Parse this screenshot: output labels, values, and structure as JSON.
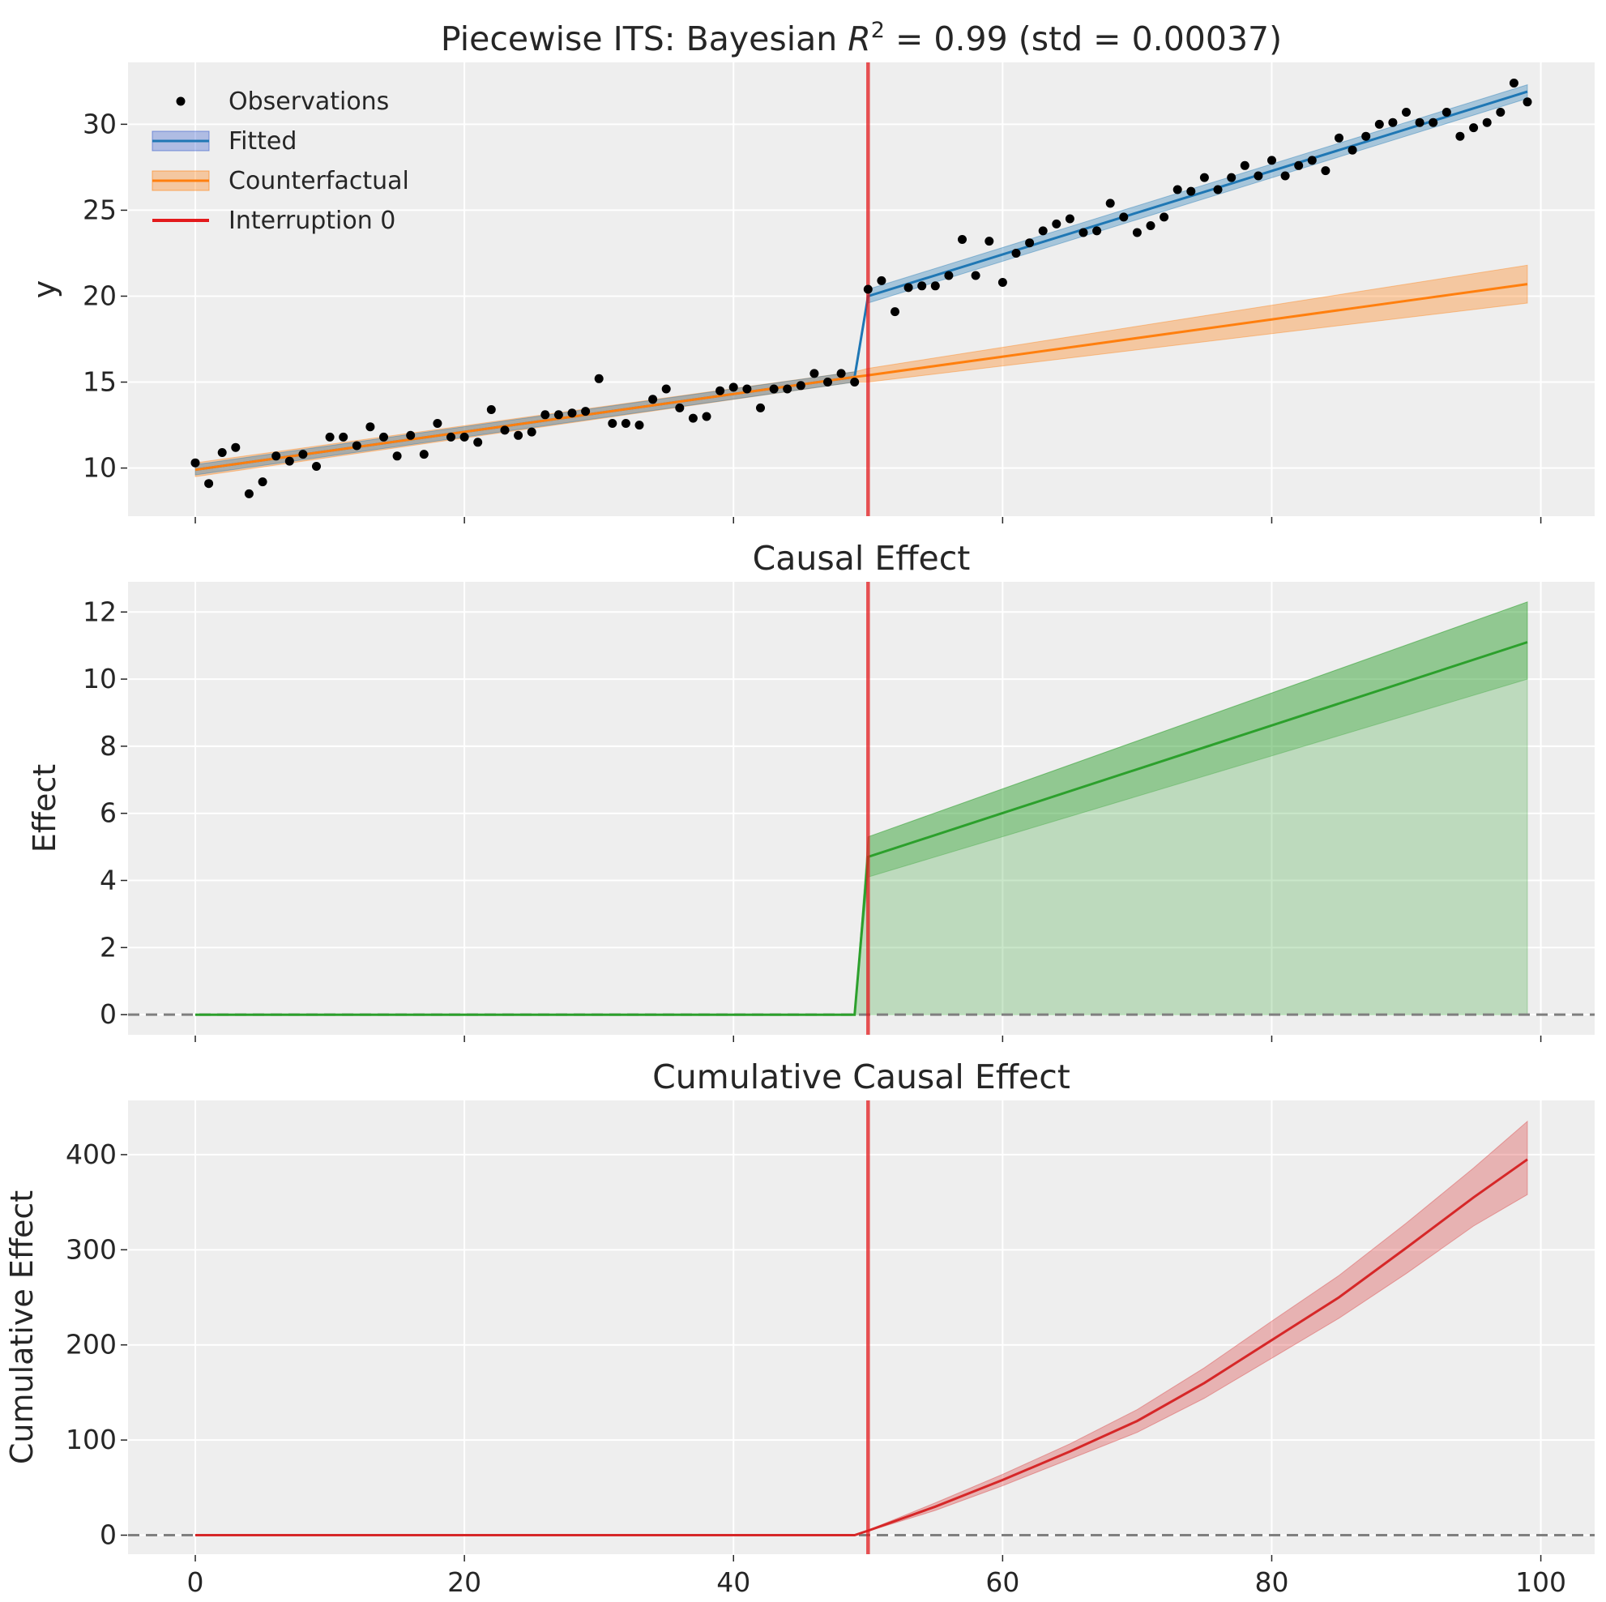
{
  "chart_data": [
    {
      "type": "line",
      "title_prefix": "Piecewise ITS: Bayesian ",
      "title_var": "R",
      "title_sup": "2",
      "title_suffix": " = 0.99 (std = 0.00037)",
      "xlabel": "",
      "ylabel": "y",
      "xlim": [
        -5,
        104
      ],
      "ylim": [
        7.2,
        33.6
      ],
      "yticks": [
        10,
        15,
        20,
        25,
        30
      ],
      "xticks": [
        0,
        20,
        40,
        60,
        80,
        100
      ],
      "show_xtick_labels": false,
      "grid": true,
      "legend_position": "top-left",
      "interruption_x": 50,
      "observations": {
        "name": "Observations",
        "color": "#000000",
        "x": [
          0,
          1,
          2,
          3,
          4,
          5,
          6,
          7,
          8,
          9,
          10,
          11,
          12,
          13,
          14,
          15,
          16,
          17,
          18,
          19,
          20,
          21,
          22,
          23,
          24,
          25,
          26,
          27,
          28,
          29,
          30,
          31,
          32,
          33,
          34,
          35,
          36,
          37,
          38,
          39,
          40,
          41,
          42,
          43,
          44,
          45,
          46,
          47,
          48,
          49,
          50,
          51,
          52,
          53,
          54,
          55,
          56,
          57,
          58,
          59,
          60,
          61,
          62,
          63,
          64,
          65,
          66,
          67,
          68,
          69,
          70,
          71,
          72,
          73,
          74,
          75,
          76,
          77,
          78,
          79,
          80,
          81,
          82,
          83,
          84,
          85,
          86,
          87,
          88,
          89,
          90,
          91,
          92,
          93,
          94,
          95,
          96,
          97,
          98,
          99
        ],
        "y": [
          10.3,
          9.1,
          10.9,
          11.2,
          8.5,
          9.2,
          10.7,
          10.4,
          10.8,
          10.1,
          11.8,
          11.8,
          11.3,
          12.4,
          11.8,
          10.7,
          11.9,
          10.8,
          12.6,
          11.8,
          11.8,
          11.5,
          13.4,
          12.2,
          11.9,
          12.1,
          13.1,
          13.1,
          13.2,
          13.3,
          15.2,
          12.6,
          12.6,
          12.5,
          14.0,
          14.6,
          13.5,
          12.9,
          13.0,
          14.5,
          14.7,
          14.6,
          13.5,
          14.6,
          14.6,
          14.8,
          15.5,
          15.0,
          15.5,
          15.0,
          20.4,
          20.9,
          19.1,
          20.5,
          20.6,
          20.6,
          21.2,
          23.3,
          21.2,
          23.2,
          20.8,
          22.5,
          23.1,
          23.8,
          24.2,
          24.5,
          23.7,
          23.8,
          25.4,
          24.6,
          23.7,
          24.1,
          24.6,
          26.2,
          26.1,
          26.9,
          26.2,
          26.9,
          27.6,
          27.0,
          27.9,
          27.0,
          27.6,
          27.9,
          27.3,
          29.2,
          28.5,
          29.3,
          30.0,
          30.1,
          30.7,
          30.1,
          30.1,
          30.7,
          29.3,
          29.8,
          30.1,
          30.7,
          32.4,
          31.3
        ]
      },
      "fitted": {
        "name": "Fitted",
        "color": "#1f77b4",
        "legend_color": "#3a5fcd",
        "segments": [
          {
            "x": [
              0,
              49
            ],
            "y": [
              9.9,
              15.3
            ],
            "lower": [
              9.6,
              15.0
            ],
            "upper": [
              10.2,
              15.6
            ]
          },
          {
            "x": [
              50,
              99
            ],
            "y": [
              20.0,
              31.9
            ],
            "lower": [
              19.6,
              31.5
            ],
            "upper": [
              20.4,
              32.3
            ]
          }
        ],
        "jump": {
          "x": [
            49,
            50
          ],
          "y": [
            15.3,
            20.0
          ]
        }
      },
      "counterfactual": {
        "name": "Counterfactual",
        "color": "#ff7f0e",
        "x": [
          0,
          49,
          50,
          99
        ],
        "y": [
          9.9,
          15.3,
          15.4,
          20.7
        ],
        "lower": [
          9.5,
          15.0,
          15.0,
          19.6
        ],
        "upper": [
          10.3,
          15.6,
          15.8,
          21.8
        ]
      },
      "interruption": {
        "name": "Interruption 0",
        "color": "#e31a1c"
      }
    },
    {
      "type": "line",
      "title": "Causal Effect",
      "xlabel": "",
      "ylabel": "Effect",
      "xlim": [
        -5,
        104
      ],
      "ylim": [
        -0.6,
        12.9
      ],
      "yticks": [
        0,
        2,
        4,
        6,
        8,
        10,
        12
      ],
      "xticks": [
        0,
        20,
        40,
        60,
        80,
        100
      ],
      "show_xtick_labels": false,
      "grid": true,
      "interruption_x": 50,
      "zero_line": true,
      "series": [
        {
          "name": "",
          "color": "#2ca02c",
          "x": [
            0,
            49,
            50,
            99
          ],
          "y": [
            0,
            0,
            4.7,
            11.1
          ],
          "inner_lower": [
            0,
            0,
            4.1,
            10.0
          ],
          "inner_upper": [
            0,
            0,
            5.3,
            12.3
          ],
          "outer_lower": [
            0,
            0,
            0,
            0
          ],
          "outer_upper": [
            0,
            0,
            5.3,
            12.3
          ]
        }
      ]
    },
    {
      "type": "line",
      "title": "Cumulative Causal Effect",
      "xlabel": "",
      "ylabel": "Cumulative Effect",
      "xlim": [
        -5,
        104
      ],
      "ylim": [
        -20,
        457
      ],
      "yticks": [
        0,
        100,
        200,
        300,
        400
      ],
      "xticks": [
        0,
        20,
        40,
        60,
        80,
        100
      ],
      "show_xtick_labels": true,
      "grid": true,
      "interruption_x": 50,
      "zero_line": true,
      "series": [
        {
          "name": "",
          "color": "#d62728",
          "x": [
            0,
            49,
            50,
            55,
            60,
            65,
            70,
            75,
            80,
            85,
            90,
            95,
            99
          ],
          "y": [
            0,
            0,
            4.7,
            30,
            58,
            88,
            120,
            160,
            205,
            250,
            302,
            355,
            395
          ],
          "lower": [
            0,
            0,
            4.1,
            26,
            52,
            80,
            108,
            144,
            186,
            228,
            275,
            325,
            358
          ],
          "upper": [
            0,
            0,
            5.3,
            34,
            64,
            96,
            132,
            176,
            225,
            273,
            328,
            386,
            435
          ]
        }
      ]
    }
  ]
}
